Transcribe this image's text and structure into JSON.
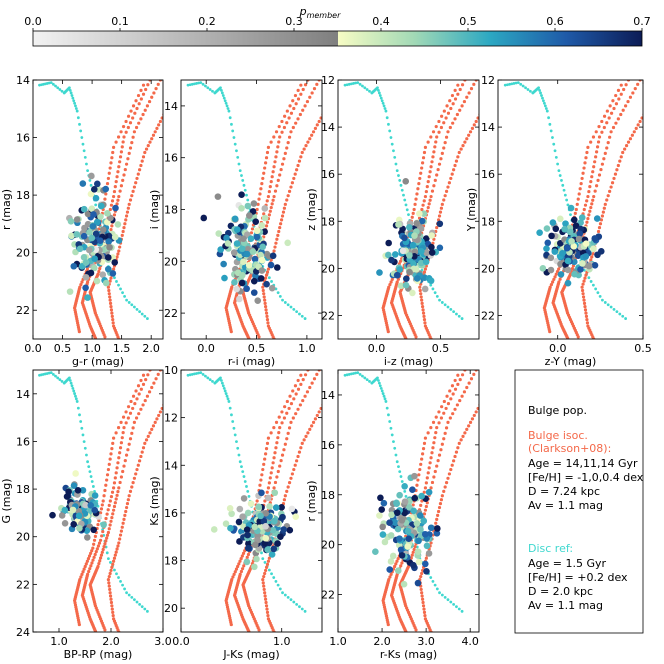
{
  "colorbar": {
    "label": "p_member",
    "label_main": "p",
    "label_sub": "member",
    "ticks": [
      "0.0",
      "0.1",
      "0.2",
      "0.3",
      "0.4",
      "0.5",
      "0.6",
      "0.7"
    ],
    "range": [
      0.0,
      0.7
    ]
  },
  "legend": {
    "title": "Bulge pop.",
    "bulge_heading_1": "Bulge isoc.",
    "bulge_heading_2": "(Clarkson+08):",
    "bulge_lines": [
      "Age = 14,11,14 Gyr",
      "[Fe/H] = -1,0,0.4 dex",
      "D = 7.24 kpc",
      "Av = 1.1 mag"
    ],
    "disc_heading": "Disc ref:",
    "disc_lines": [
      "Age = 1.5 Gyr",
      "[Fe/H] = +0.2 dex",
      "D = 2.0 kpc",
      "Av = 1.1 mag"
    ],
    "colors": {
      "bulge": "#f4694a",
      "disc": "#3fd8cf",
      "text": "#000000"
    }
  },
  "chart_data": [
    {
      "type": "scatter",
      "xlabel": "g-r (mag)",
      "ylabel": "r (mag)",
      "xlim": [
        0.0,
        2.2
      ],
      "ylim": [
        23,
        14
      ],
      "xticks": [
        "0.0",
        "0.5",
        "1.0",
        "1.5",
        "2.0"
      ],
      "xtick_values": [
        0.0,
        0.5,
        1.0,
        1.5,
        2.0
      ],
      "yticks": [
        "14",
        "16",
        "18",
        "20",
        "22"
      ],
      "ytick_values": [
        14,
        16,
        18,
        20,
        22
      ],
      "member_points": {
        "x_center": 1.05,
        "x_spread": 0.4,
        "y_center": 19.5,
        "y_spread": 1.5,
        "count": 150
      }
    },
    {
      "type": "scatter",
      "xlabel": "r-i (mag)",
      "ylabel": "i (mag)",
      "xlim": [
        -0.25,
        1.15
      ],
      "ylim": [
        23,
        13
      ],
      "xticks": [
        "0.0",
        "0.5",
        "1.0"
      ],
      "xtick_values": [
        0.0,
        0.5,
        1.0
      ],
      "yticks": [
        "14",
        "16",
        "18",
        "20",
        "22"
      ],
      "ytick_values": [
        14,
        16,
        18,
        20,
        22
      ],
      "member_points": {
        "x_center": 0.4,
        "x_spread": 0.25,
        "y_center": 19.6,
        "y_spread": 1.5,
        "count": 150
      }
    },
    {
      "type": "scatter",
      "xlabel": "i-z (mag)",
      "ylabel": "z (mag)",
      "xlim": [
        -0.3,
        0.8
      ],
      "ylim": [
        23,
        12
      ],
      "xticks": [
        "0.0",
        "0.5"
      ],
      "xtick_values": [
        0.0,
        0.5
      ],
      "yticks": [
        "12",
        "14",
        "16",
        "18",
        "20",
        "22"
      ],
      "ytick_values": [
        12,
        14,
        16,
        18,
        20,
        22
      ],
      "member_points": {
        "x_center": 0.28,
        "x_spread": 0.18,
        "y_center": 19.4,
        "y_spread": 1.4,
        "count": 150
      }
    },
    {
      "type": "scatter",
      "xlabel": "z-Y (mag)",
      "ylabel": "Y (mag)",
      "xlim": [
        -0.35,
        0.5
      ],
      "ylim": [
        23,
        12
      ],
      "xticks": [
        "0.0",
        "0.5"
      ],
      "xtick_values": [
        0.0,
        0.5
      ],
      "yticks": [
        "12",
        "14",
        "16",
        "18",
        "20",
        "22"
      ],
      "ytick_values": [
        12,
        14,
        16,
        18,
        20,
        22
      ],
      "member_points": {
        "x_center": 0.08,
        "x_spread": 0.15,
        "y_center": 19.2,
        "y_spread": 1.1,
        "count": 140
      }
    },
    {
      "type": "scatter",
      "xlabel": "BP-RP (mag)",
      "ylabel": "G (mag)",
      "xlim": [
        0.5,
        3.0
      ],
      "ylim": [
        24,
        13
      ],
      "xticks": [
        "1.0",
        "2.0",
        "3.0"
      ],
      "xtick_values": [
        1.0,
        2.0,
        3.0
      ],
      "yticks": [
        "14",
        "16",
        "18",
        "20",
        "22",
        "24"
      ],
      "ytick_values": [
        14,
        16,
        18,
        20,
        22,
        24
      ],
      "member_points": {
        "x_center": 1.4,
        "x_spread": 0.35,
        "y_center": 18.9,
        "y_spread": 0.9,
        "count": 110
      }
    },
    {
      "type": "scatter",
      "xlabel": "J-Ks (mag)",
      "ylabel": "Ks (mag)",
      "xlim": [
        0.0,
        1.4
      ],
      "ylim": [
        21,
        10
      ],
      "xticks": [
        "0.0",
        "1.0"
      ],
      "xtick_values": [
        0.0,
        1.0
      ],
      "yticks": [
        "10",
        "12",
        "14",
        "16",
        "18",
        "20"
      ],
      "ytick_values": [
        10,
        12,
        14,
        16,
        18,
        20
      ],
      "member_points": {
        "x_center": 0.8,
        "x_spread": 0.25,
        "y_center": 16.6,
        "y_spread": 1.1,
        "count": 150
      }
    },
    {
      "type": "scatter",
      "xlabel": "r-Ks (mag)",
      "ylabel": "r (mag)",
      "xlim": [
        1.0,
        4.2
      ],
      "ylim": [
        23.5,
        13
      ],
      "xticks": [
        "1.0",
        "2.0",
        "3.0",
        "4.0"
      ],
      "xtick_values": [
        1.0,
        2.0,
        3.0,
        4.0
      ],
      "yticks": [
        "14",
        "16",
        "18",
        "20",
        "22"
      ],
      "ytick_values": [
        14,
        16,
        18,
        20,
        22
      ],
      "member_points": {
        "x_center": 2.6,
        "x_spread": 0.5,
        "y_center": 19.3,
        "y_spread": 1.4,
        "count": 150
      }
    }
  ]
}
